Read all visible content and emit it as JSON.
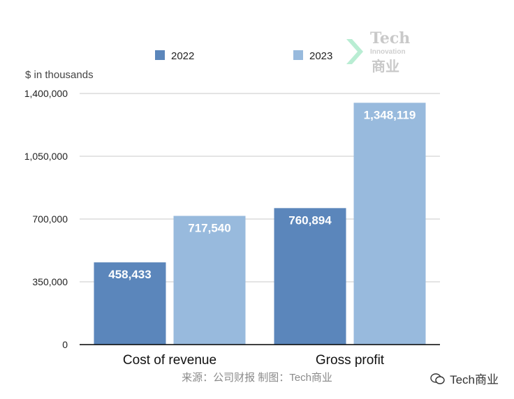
{
  "chart_data": {
    "type": "bar",
    "categories": [
      "Cost of revenue",
      "Gross profit"
    ],
    "series": [
      {
        "name": "2022",
        "values": [
          458433,
          760894
        ],
        "color": "#5b86bb"
      },
      {
        "name": "2023",
        "values": [
          717540,
          1348119
        ],
        "color": "#98badd"
      }
    ],
    "data_labels": [
      [
        "458,433",
        "760,894"
      ],
      [
        "717,540",
        "1,348,119"
      ]
    ],
    "ylabel": "$ in thousands",
    "ylim": [
      0,
      1400000
    ],
    "yticks": [
      0,
      350000,
      700000,
      1050000,
      1400000
    ],
    "ytick_labels": [
      "0",
      "350,000",
      "700,000",
      "1,050,000",
      "1,400,000"
    ],
    "grid": true,
    "legend_position": "top"
  },
  "source_text": "来源：公司财报 制图：Tech商业",
  "watermark": {
    "line1": "Tech",
    "line2": "Innovation",
    "line3": "商业"
  },
  "wechat_account": "Tech商业",
  "wechat_icon": "wechat-icon",
  "arrow_color": "#a8e8c8"
}
